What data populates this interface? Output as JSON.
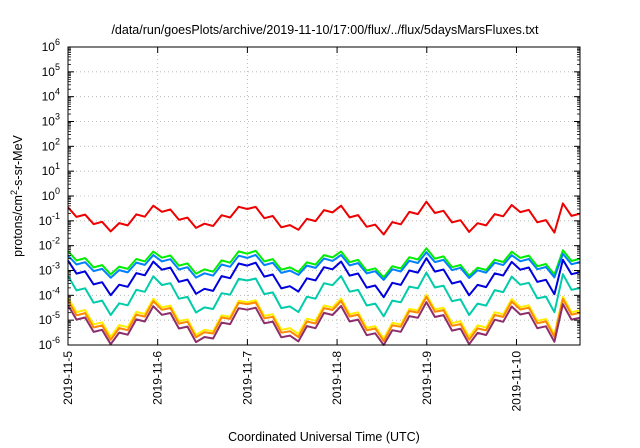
{
  "chart_data": {
    "type": "line",
    "title": "/data/run/goesPlots/archive/2019-11-10/17:00/flux/../flux/5daysMarsFluxes.txt",
    "xlabel": "Coordinated Universal Time (UTC)",
    "ylabel_parts": [
      "protons/cm",
      "2",
      "-s-sr-MeV"
    ],
    "yscale": "log",
    "ylim": [
      1e-06,
      1000000.0
    ],
    "yticks": [
      {
        "base": "10",
        "exp": "-6",
        "value": 1e-06
      },
      {
        "base": "10",
        "exp": "-5",
        "value": 1e-05
      },
      {
        "base": "10",
        "exp": "-4",
        "value": 0.0001
      },
      {
        "base": "10",
        "exp": "-3",
        "value": 0.001
      },
      {
        "base": "10",
        "exp": "-2",
        "value": 0.01
      },
      {
        "base": "10",
        "exp": "-1",
        "value": 0.1
      },
      {
        "base": "10",
        "exp": "0",
        "value": 1
      },
      {
        "base": "10",
        "exp": "1",
        "value": 10
      },
      {
        "base": "10",
        "exp": "2",
        "value": 100
      },
      {
        "base": "10",
        "exp": "3",
        "value": 1000
      },
      {
        "base": "10",
        "exp": "4",
        "value": 10000
      },
      {
        "base": "10",
        "exp": "5",
        "value": 100000
      },
      {
        "base": "10",
        "exp": "6",
        "value": 1000000
      }
    ],
    "xlim": [
      "2019-11-05T00:00",
      "2019-11-10T17:00"
    ],
    "xticks": [
      "2019-11-5",
      "2019-11-6",
      "2019-11-7",
      "2019-11-8",
      "2019-11-9",
      "2019-11-10"
    ],
    "grid": true,
    "legend": "none",
    "cycle_days": 0.5,
    "series": [
      {
        "color": "#ee0000",
        "values": [
          0.35,
          0.06,
          0.5,
          0.07,
          0.55,
          0.06,
          0.5,
          0.05,
          0.6,
          0.06,
          0.55,
          0.045
        ]
      },
      {
        "color": "#00ee00",
        "values": [
          0.006,
          0.0011,
          0.007,
          0.001,
          0.009,
          0.0012,
          0.007,
          0.0009,
          0.008,
          0.001,
          0.007,
          0.0009
        ]
      },
      {
        "color": "#0080ff",
        "values": [
          0.004,
          0.0008,
          0.005,
          0.0007,
          0.006,
          0.0009,
          0.005,
          0.0007,
          0.0055,
          0.0008,
          0.005,
          0.0007
        ]
      },
      {
        "color": "#0000dd",
        "values": [
          0.0025,
          0.00018,
          0.003,
          0.00016,
          0.0035,
          0.0002,
          0.003,
          0.00016,
          0.0032,
          0.00018,
          0.003,
          0.00015
        ]
      },
      {
        "color": "#00ccaa",
        "values": [
          0.0006,
          3e-05,
          0.0008,
          2.8e-05,
          0.0009,
          3e-05,
          0.0008,
          2.8e-05,
          0.00085,
          3e-05,
          0.0008,
          2.8e-05
        ]
      },
      {
        "color": "#ffee00",
        "values": [
          8e-05,
          4e-06,
          0.0001,
          3.5e-06,
          0.00012,
          4e-06,
          0.0001,
          3.5e-06,
          0.00011,
          4e-06,
          0.0001,
          3.5e-06
        ]
      },
      {
        "color": "#ff8800",
        "values": [
          6e-05,
          3e-06,
          8e-05,
          2.8e-06,
          0.0001,
          3e-06,
          8e-05,
          2.8e-06,
          9e-05,
          3e-06,
          8e-05,
          2.8e-06
        ]
      },
      {
        "color": "#8b2e6b",
        "values": [
          4e-05,
          2e-06,
          5e-05,
          1.8e-06,
          6e-05,
          2e-06,
          5e-05,
          1.8e-06,
          5.5e-05,
          2e-06,
          5e-05,
          1.8e-06
        ]
      }
    ]
  }
}
